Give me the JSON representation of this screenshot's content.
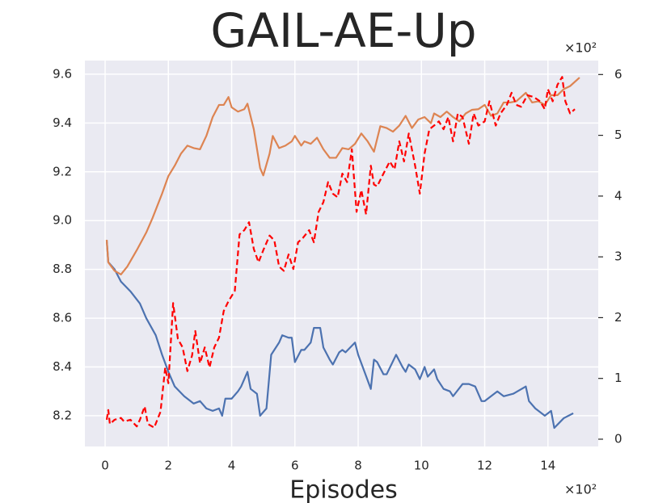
{
  "chart_data": {
    "type": "line",
    "title": "GAIL-AE-Up",
    "x_label": "Episodes",
    "x_offset_label": "×10²",
    "y2_offset_label": "×10²",
    "xlim": [
      -0.64,
      15.59
    ],
    "xticks": [
      0,
      2,
      4,
      6,
      8,
      10,
      12,
      14
    ],
    "ylim": [
      8.074,
      9.656
    ],
    "yticks": [
      8.2,
      8.4,
      8.6,
      8.8,
      {
        "value": 9,
        "label": "9.0"
      },
      9.2,
      9.4,
      9.6
    ],
    "y2lim": [
      -0.12,
      6.23
    ],
    "y2ticks": [
      0,
      1,
      2,
      3,
      4,
      5,
      6
    ],
    "grid": true,
    "background": "#eaeaf2",
    "series": [
      {
        "color": "#4c72b0",
        "dashed": false,
        "axis": "y",
        "x": [
          0.05,
          0.1,
          0.3,
          0.5,
          0.8,
          1.1,
          1.3,
          1.6,
          1.8,
          2.0,
          2.2,
          2.5,
          2.8,
          3.0,
          3.2,
          3.4,
          3.6,
          3.7,
          3.8,
          4.0,
          4.2,
          4.3,
          4.5,
          4.6,
          4.8,
          4.9,
          5.1,
          5.25,
          5.5,
          5.6,
          5.8,
          5.9,
          6.0,
          6.2,
          6.3,
          6.5,
          6.6,
          6.8,
          6.9,
          7.1,
          7.2,
          7.4,
          7.5,
          7.6,
          7.9,
          8.0,
          8.2,
          8.4,
          8.5,
          8.6,
          8.8,
          8.9,
          9.2,
          9.4,
          9.5,
          9.6,
          9.8,
          9.95,
          10.1,
          10.2,
          10.4,
          10.5,
          10.7,
          10.9,
          11.0,
          11.3,
          11.5,
          11.7,
          11.9,
          12.0,
          12.4,
          12.6,
          12.9,
          13.3,
          13.4,
          13.6,
          13.9,
          14.1,
          14.2,
          14.5,
          14.8
        ],
        "values": [
          8.92,
          8.83,
          8.8,
          8.75,
          8.71,
          8.66,
          8.6,
          8.53,
          8.45,
          8.38,
          8.32,
          8.28,
          8.25,
          8.26,
          8.23,
          8.22,
          8.23,
          8.2,
          8.27,
          8.27,
          8.3,
          8.32,
          8.38,
          8.31,
          8.29,
          8.2,
          8.23,
          8.45,
          8.5,
          8.53,
          8.52,
          8.52,
          8.42,
          8.47,
          8.47,
          8.5,
          8.56,
          8.56,
          8.48,
          8.43,
          8.41,
          8.46,
          8.47,
          8.46,
          8.5,
          8.45,
          8.38,
          8.31,
          8.43,
          8.42,
          8.37,
          8.37,
          8.45,
          8.4,
          8.38,
          8.41,
          8.39,
          8.35,
          8.4,
          8.36,
          8.39,
          8.35,
          8.31,
          8.3,
          8.28,
          8.33,
          8.33,
          8.32,
          8.26,
          8.26,
          8.3,
          8.28,
          8.29,
          8.32,
          8.26,
          8.23,
          8.2,
          8.22,
          8.15,
          8.19,
          8.21
        ]
      },
      {
        "color": "#dd8452",
        "dashed": false,
        "axis": "y2",
        "x": [
          0.05,
          0.1,
          0.3,
          0.5,
          0.7,
          1.0,
          1.3,
          1.5,
          1.8,
          2.0,
          2.2,
          2.4,
          2.6,
          2.8,
          3.0,
          3.2,
          3.4,
          3.6,
          3.75,
          3.9,
          4.0,
          4.2,
          4.4,
          4.5,
          4.7,
          4.9,
          5.0,
          5.2,
          5.3,
          5.5,
          5.7,
          5.9,
          6.0,
          6.2,
          6.3,
          6.5,
          6.7,
          6.9,
          7.1,
          7.3,
          7.5,
          7.7,
          7.9,
          8.1,
          8.3,
          8.5,
          8.7,
          8.9,
          9.1,
          9.3,
          9.5,
          9.7,
          9.9,
          10.1,
          10.3,
          10.4,
          10.6,
          10.8,
          11.0,
          11.2,
          11.4,
          11.6,
          11.8,
          12.0,
          12.2,
          12.4,
          12.6,
          12.8,
          13.0,
          13.3,
          13.5,
          13.7,
          13.9,
          14.1,
          14.3,
          14.5,
          14.7,
          15.0
        ],
        "values": [
          3.28,
          2.91,
          2.77,
          2.71,
          2.84,
          3.11,
          3.4,
          3.64,
          4.04,
          4.33,
          4.5,
          4.7,
          4.83,
          4.79,
          4.77,
          4.99,
          5.3,
          5.5,
          5.5,
          5.63,
          5.46,
          5.39,
          5.43,
          5.52,
          5.1,
          4.46,
          4.34,
          4.7,
          4.99,
          4.79,
          4.83,
          4.9,
          4.99,
          4.83,
          4.9,
          4.86,
          4.96,
          4.77,
          4.63,
          4.63,
          4.79,
          4.77,
          4.86,
          5.03,
          4.9,
          4.73,
          5.15,
          5.12,
          5.06,
          5.16,
          5.32,
          5.12,
          5.26,
          5.3,
          5.2,
          5.36,
          5.3,
          5.39,
          5.3,
          5.23,
          5.36,
          5.42,
          5.43,
          5.5,
          5.32,
          5.36,
          5.54,
          5.54,
          5.56,
          5.7,
          5.54,
          5.56,
          5.5,
          5.66,
          5.66,
          5.76,
          5.81,
          5.95
        ]
      },
      {
        "color": "#ff0000",
        "dashed": true,
        "axis": "y2",
        "x": [
          0.05,
          0.1,
          0.15,
          0.3,
          0.5,
          0.6,
          0.8,
          1.0,
          1.1,
          1.25,
          1.35,
          1.55,
          1.75,
          1.9,
          2.0,
          2.15,
          2.3,
          2.45,
          2.6,
          2.75,
          2.85,
          3.0,
          3.15,
          3.3,
          3.45,
          3.6,
          3.75,
          3.9,
          4.1,
          4.25,
          4.4,
          4.55,
          4.7,
          4.85,
          5.0,
          5.2,
          5.35,
          5.5,
          5.65,
          5.8,
          5.95,
          6.1,
          6.25,
          6.45,
          6.6,
          6.75,
          6.9,
          7.05,
          7.2,
          7.35,
          7.5,
          7.65,
          7.8,
          7.95,
          8.1,
          8.25,
          8.4,
          8.5,
          8.6,
          8.8,
          9.0,
          9.15,
          9.3,
          9.45,
          9.6,
          9.8,
          9.95,
          10.1,
          10.25,
          10.4,
          10.55,
          10.7,
          10.85,
          11.0,
          11.15,
          11.3,
          11.5,
          11.65,
          11.8,
          12.0,
          12.15,
          12.35,
          12.5,
          12.7,
          12.85,
          13.0,
          13.15,
          13.35,
          13.55,
          13.75,
          13.9,
          14.0,
          14.15,
          14.3,
          14.45,
          14.55,
          14.7,
          14.85
        ],
        "values": [
          0.32,
          0.48,
          0.25,
          0.32,
          0.35,
          0.29,
          0.32,
          0.21,
          0.32,
          0.54,
          0.25,
          0.19,
          0.45,
          1.18,
          0.92,
          2.24,
          1.65,
          1.51,
          1.12,
          1.38,
          1.78,
          1.25,
          1.51,
          1.18,
          1.51,
          1.67,
          2.11,
          2.27,
          2.44,
          3.37,
          3.44,
          3.57,
          3.13,
          2.91,
          3.11,
          3.35,
          3.27,
          2.84,
          2.77,
          3.04,
          2.8,
          3.24,
          3.31,
          3.44,
          3.24,
          3.74,
          3.9,
          4.23,
          4.04,
          3.98,
          4.37,
          4.23,
          4.77,
          3.74,
          4.1,
          3.7,
          4.5,
          4.19,
          4.16,
          4.37,
          4.57,
          4.44,
          4.9,
          4.57,
          5.03,
          4.5,
          4.04,
          4.7,
          5.1,
          5.16,
          5.23,
          5.1,
          5.3,
          4.9,
          5.36,
          5.3,
          4.86,
          5.36,
          5.16,
          5.23,
          5.56,
          5.16,
          5.36,
          5.5,
          5.7,
          5.5,
          5.47,
          5.66,
          5.63,
          5.56,
          5.43,
          5.76,
          5.56,
          5.83,
          5.96,
          5.56,
          5.36,
          5.43
        ]
      }
    ]
  }
}
